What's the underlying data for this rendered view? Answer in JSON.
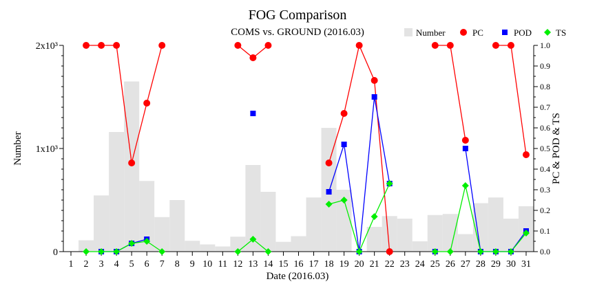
{
  "chart_data": {
    "type": "bar+line",
    "title": "FOG Comparison",
    "subtitle": "COMS vs. GROUND (2016.03)",
    "xlabel": "Date (2016.03)",
    "ylabel_left": "Number",
    "ylabel_right": "PC & POD & TS",
    "x": [
      1,
      2,
      3,
      4,
      5,
      6,
      7,
      8,
      9,
      10,
      11,
      12,
      13,
      14,
      15,
      16,
      17,
      18,
      19,
      20,
      21,
      22,
      23,
      24,
      25,
      26,
      27,
      28,
      29,
      30,
      31
    ],
    "x_tick_labels": [
      "1",
      "2",
      "3",
      "4",
      "5",
      "6",
      "7",
      "8",
      "9",
      "10",
      "11",
      "12",
      "13",
      "14",
      "15",
      "16",
      "17",
      "18",
      "19",
      "20",
      "21",
      "22",
      "23",
      "24",
      "25",
      "26",
      "27",
      "28",
      "29",
      "30",
      "31"
    ],
    "y_left_lim": [
      0,
      2000
    ],
    "y_left_ticks": [
      0,
      1000,
      2000
    ],
    "y_left_tick_labels": [
      "0",
      "1x10³",
      "2x10³"
    ],
    "y_right_lim": [
      0,
      1.0
    ],
    "y_right_ticks": [
      0.0,
      0.1,
      0.2,
      0.3,
      0.4,
      0.5,
      0.6,
      0.7,
      0.8,
      0.9,
      1.0
    ],
    "y_right_tick_labels": [
      "0.0",
      "0.1",
      "0.2",
      "0.3",
      "0.4",
      "0.5",
      "0.6",
      "0.7",
      "0.8",
      "0.9",
      "1.0"
    ],
    "legend": {
      "position": "top-right",
      "entries": [
        "Number",
        "PC",
        "POD",
        "TS"
      ]
    },
    "colors": {
      "Number": "#e3e3e3",
      "PC": "#ff0000",
      "POD": "#0000ff",
      "TS": "#00ee00",
      "axis": "#000000"
    },
    "series": [
      {
        "name": "Number",
        "kind": "bar",
        "axis": "left",
        "values": [
          0,
          110,
          545,
          1160,
          1650,
          685,
          335,
          500,
          105,
          70,
          50,
          145,
          840,
          580,
          95,
          150,
          525,
          1200,
          600,
          0,
          240,
          345,
          320,
          100,
          355,
          365,
          170,
          470,
          525,
          320,
          440
        ]
      },
      {
        "name": "PC",
        "kind": "line-marker",
        "axis": "right",
        "values": [
          null,
          1.0,
          1.0,
          1.0,
          0.43,
          0.72,
          1.0,
          null,
          null,
          null,
          null,
          1.0,
          0.94,
          1.0,
          null,
          null,
          null,
          0.43,
          0.67,
          1.0,
          0.83,
          0.0,
          null,
          null,
          1.0,
          1.0,
          0.54,
          null,
          1.0,
          1.0,
          0.47
        ]
      },
      {
        "name": "POD",
        "kind": "line-marker",
        "axis": "right",
        "values": [
          null,
          null,
          0.0,
          0.0,
          0.04,
          0.06,
          null,
          null,
          null,
          null,
          null,
          null,
          0.67,
          null,
          null,
          null,
          null,
          0.29,
          0.52,
          0.0,
          0.75,
          0.33,
          null,
          null,
          0.0,
          null,
          0.5,
          0.0,
          0.0,
          0.0,
          0.1
        ]
      },
      {
        "name": "TS",
        "kind": "line-marker",
        "axis": "right",
        "values": [
          null,
          0.0,
          0.0,
          0.0,
          0.04,
          0.05,
          0.0,
          null,
          null,
          null,
          null,
          0.0,
          0.06,
          0.0,
          null,
          null,
          null,
          0.23,
          0.25,
          0.0,
          0.17,
          0.33,
          null,
          null,
          0.0,
          0.0,
          0.32,
          0.0,
          0.0,
          0.0,
          0.09
        ]
      }
    ]
  }
}
